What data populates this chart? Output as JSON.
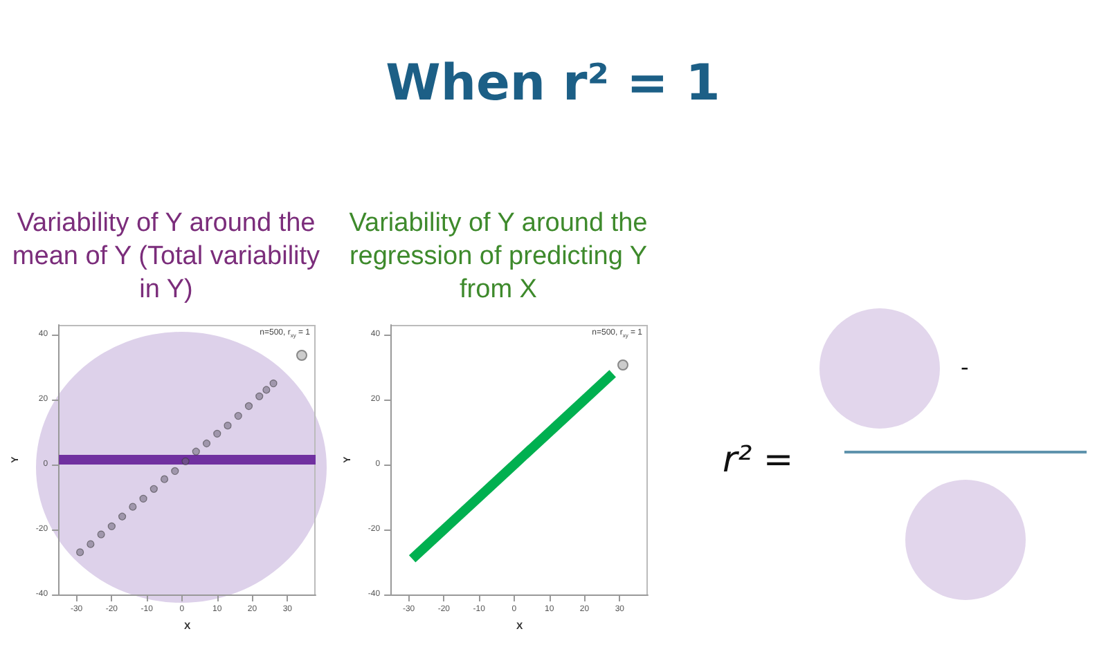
{
  "chart_data": [
    {
      "type": "scatter",
      "title": "Variability of Y around the mean of Y (Total variability in Y)",
      "xlabel": "X",
      "ylabel": "Y",
      "xlim": [
        -35,
        38
      ],
      "ylim": [
        -40,
        43
      ],
      "xticks": [
        -30,
        -20,
        -10,
        0,
        10,
        20,
        30
      ],
      "yticks": [
        -40,
        -20,
        0,
        20,
        40
      ],
      "grid": false,
      "marker": "circle",
      "series": [
        {
          "color": "#6e6878",
          "x": [
            -29,
            -26,
            -23,
            -20,
            -17,
            -14,
            -11,
            -8,
            -5,
            -2,
            1,
            4,
            7,
            10,
            13,
            16,
            19,
            22,
            24,
            26
          ],
          "values": [
            -27,
            -24.5,
            -21.5,
            -19,
            -16,
            -13,
            -10.5,
            -7.5,
            -4.5,
            -2,
            1,
            4,
            6.5,
            9.5,
            12,
            15,
            18,
            21,
            23,
            25
          ]
        }
      ],
      "ref_lines": [
        {
          "axis": "y",
          "value": 1.5,
          "color": "#7030a0"
        }
      ],
      "annotations": [
        "n=500, r$_{xy}$ = 1"
      ]
    },
    {
      "type": "line",
      "title": "Variability of Y around the regression of predicting Y from X",
      "xlabel": "X",
      "ylabel": "Y",
      "xlim": [
        -35,
        38
      ],
      "ylim": [
        -40,
        43
      ],
      "xticks": [
        -30,
        -20,
        -10,
        0,
        10,
        20,
        30
      ],
      "yticks": [
        -40,
        -20,
        0,
        20,
        40
      ],
      "grid": false,
      "marker": "none",
      "line_style": "solid",
      "series": [
        {
          "color": "#00b050",
          "x": [
            -29,
            -20,
            -10,
            0,
            10,
            20,
            28
          ],
          "values": [
            -29,
            -20,
            -10,
            0,
            10,
            20,
            28
          ]
        }
      ],
      "annotations": [
        "n=500, r$_{xy}$ = 1"
      ]
    },
    {
      "type": "other",
      "title": "When r² = 1",
      "annotations": [
        "r² =",
        "-"
      ]
    }
  ]
}
